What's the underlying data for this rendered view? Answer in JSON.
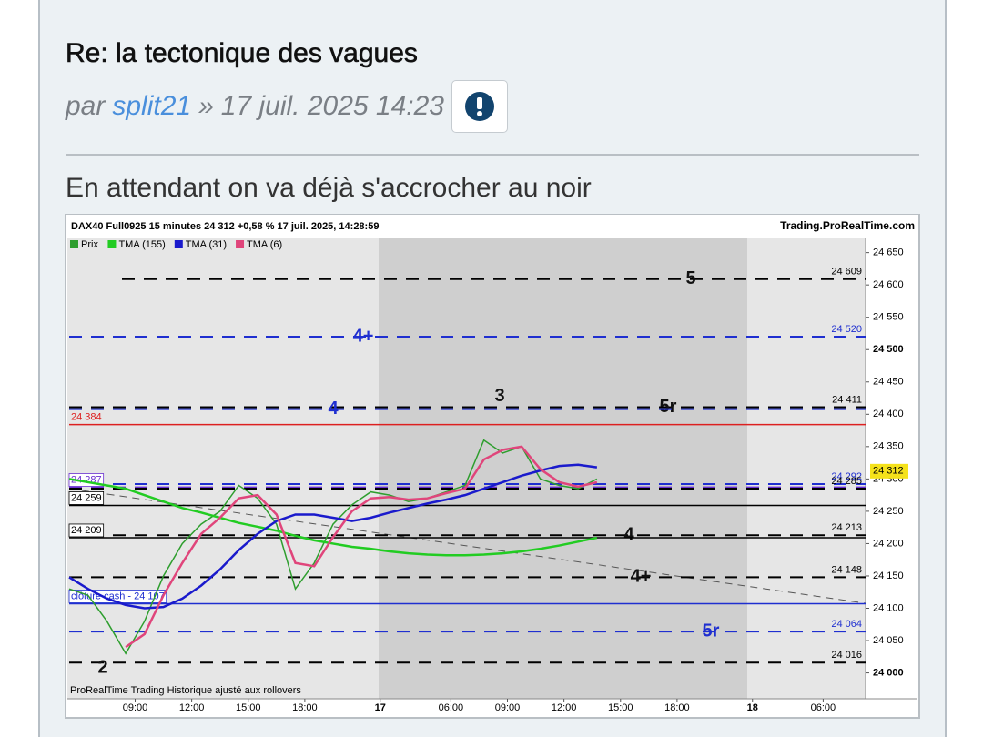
{
  "post": {
    "title": "Re: la tectonique des vagues",
    "by": "par",
    "author": "split21",
    "sep": "»",
    "date": "17 juil. 2025 14:23",
    "body": "En attendant on va déjà s'accrocher au noir"
  },
  "chart_data": {
    "type": "line",
    "header": "DAX40 Full0925 15 minutes 24 312 +0,58 % 17 juil. 2025, 14:28:59",
    "source": "Trading.ProRealTime.com",
    "footer": "ProRealTime Trading  Historique ajusté aux rollovers",
    "xlim": [
      0,
      169
    ],
    "xticks": [
      {
        "value": 14,
        "label": "09:00"
      },
      {
        "value": 26,
        "label": "12:00"
      },
      {
        "value": 38,
        "label": "15:00"
      },
      {
        "value": 50,
        "label": "18:00"
      },
      {
        "value": 66,
        "label": "17"
      },
      {
        "value": 81,
        "label": "06:00"
      },
      {
        "value": 93,
        "label": "09:00"
      },
      {
        "value": 105,
        "label": "12:00"
      },
      {
        "value": 117,
        "label": "15:00"
      },
      {
        "value": 129,
        "label": "18:00"
      },
      {
        "value": 145,
        "label": "18"
      },
      {
        "value": 160,
        "label": "06:00"
      }
    ],
    "ylim": [
      23960,
      24672
    ],
    "yticks": [
      {
        "value": 24650,
        "label": "24 650"
      },
      {
        "value": 24600,
        "label": "24 600"
      },
      {
        "value": 24550,
        "label": "24 550"
      },
      {
        "value": 24500,
        "label": "24 500"
      },
      {
        "value": 24450,
        "label": "24 450"
      },
      {
        "value": 24400,
        "label": "24 400"
      },
      {
        "value": 24350,
        "label": "24 350"
      },
      {
        "value": 24300,
        "label": "24 300"
      },
      {
        "value": 24250,
        "label": "24 250"
      },
      {
        "value": 24200,
        "label": "24 200"
      },
      {
        "value": 24150,
        "label": "24 150"
      },
      {
        "value": 24100,
        "label": "24 100"
      },
      {
        "value": 24050,
        "label": "24 050"
      },
      {
        "value": 24000,
        "label": "24 000"
      }
    ],
    "last": {
      "value": 24312,
      "label": "24 312"
    },
    "x": [
      0,
      4,
      8,
      12,
      16,
      20,
      24,
      28,
      32,
      36,
      40,
      44,
      48,
      52,
      56,
      60,
      64,
      68,
      72,
      76,
      80,
      84,
      88,
      92,
      96,
      100,
      104,
      108,
      112
    ],
    "series": [
      {
        "name": "Prix",
        "color": "#2e9e2e",
        "values": [
          24130,
          24120,
          24080,
          24030,
          24080,
          24150,
          24200,
          24230,
          24250,
          24290,
          24270,
          24230,
          24130,
          24170,
          24230,
          24260,
          24280,
          24275,
          24265,
          24270,
          24280,
          24290,
          24360,
          24340,
          24350,
          24300,
          24290,
          24285,
          24300
        ]
      },
      {
        "name": "TMA (155)",
        "color": "#22cc22",
        "values": [
          24300,
          24295,
          24290,
          24285,
          24275,
          24265,
          24255,
          24248,
          24240,
          24232,
          24226,
          24220,
          24212,
          24205,
          24200,
          24195,
          24192,
          24188,
          24185,
          24183,
          24182,
          24182,
          24183,
          24185,
          24188,
          24192,
          24197,
          24203,
          24209
        ]
      },
      {
        "name": "TMA (31)",
        "color": "#1a1acc",
        "values": [
          24148,
          24130,
          24115,
          24105,
          24100,
          24102,
          24115,
          24135,
          24160,
          24190,
          24215,
          24235,
          24245,
          24245,
          24240,
          24235,
          24240,
          24248,
          24255,
          24262,
          24268,
          24275,
          24285,
          24295,
          24305,
          24313,
          24320,
          24322,
          24318
        ]
      },
      {
        "name": "TMA (6)",
        "color": "#e0457b",
        "values": [
          null,
          null,
          null,
          24040,
          24060,
          24120,
          24170,
          24215,
          24240,
          24270,
          24275,
          24245,
          24170,
          24165,
          24210,
          24250,
          24270,
          24272,
          24268,
          24270,
          24278,
          24285,
          24330,
          24345,
          24350,
          24315,
          24295,
          24288,
          24295
        ]
      }
    ],
    "levels": [
      {
        "value": 24609,
        "label": "24 609",
        "color": "#000000",
        "style": "dash",
        "side": "right",
        "markers": [
          "5"
        ]
      },
      {
        "value": 24520,
        "label": "24 520",
        "color": "#1f2fd0",
        "style": "dash",
        "side": "right",
        "markers": [
          "4+"
        ]
      },
      {
        "value": 24411,
        "label": "24 411",
        "color": "#000000",
        "style": "dash",
        "side": "right",
        "markers": [
          "3",
          "5r"
        ]
      },
      {
        "value": 24408,
        "color": "#1f2fd0",
        "style": "dash",
        "side": "right",
        "markers": [
          "4"
        ]
      },
      {
        "value": 24384,
        "label": "24 384",
        "color": "#dd2020",
        "style": "solid",
        "side": "left"
      },
      {
        "value": 24292,
        "label": "24 292",
        "color": "#1f2fd0",
        "style": "dash",
        "side": "right"
      },
      {
        "value": 24287,
        "label": "24 287",
        "color": "#6a2fd0",
        "style": "dash",
        "side": "left"
      },
      {
        "value": 24285,
        "label": "24 285",
        "color": "#000000",
        "style": "dash",
        "side": "right"
      },
      {
        "value": 24259,
        "label": "24 259",
        "color": "#000000",
        "style": "solid",
        "side": "left"
      },
      {
        "value": 24213,
        "label": "24 213",
        "color": "#000000",
        "style": "dash",
        "side": "right",
        "markers": [
          "4"
        ]
      },
      {
        "value": 24209,
        "label": "24 209",
        "color": "#000000",
        "style": "solid",
        "side": "left"
      },
      {
        "value": 24148,
        "label": "24 148",
        "color": "#000000",
        "style": "dash",
        "side": "right",
        "markers": [
          "4+"
        ]
      },
      {
        "value": 24107,
        "label": "clôture cash -  24 107",
        "color": "#1f2fd0",
        "style": "solid",
        "side": "left"
      },
      {
        "value": 24064,
        "label": "24 064",
        "color": "#1f2fd0",
        "style": "dash",
        "side": "right",
        "markers": [
          "5r"
        ]
      },
      {
        "value": 24016,
        "label": "24 016",
        "color": "#000000",
        "style": "dash",
        "side": "right",
        "markers": [
          "2"
        ]
      }
    ]
  }
}
